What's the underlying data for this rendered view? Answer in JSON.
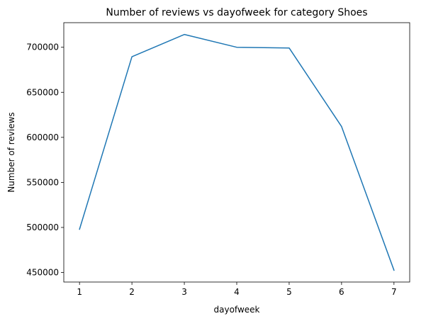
{
  "chart_data": {
    "type": "line",
    "title": "Number of reviews vs dayofweek for category Shoes",
    "xlabel": "dayofweek",
    "ylabel": "Number of reviews",
    "x": [
      1,
      2,
      3,
      4,
      5,
      6,
      7
    ],
    "series": [
      {
        "values": [
          498000,
          689500,
          714200,
          700000,
          699200,
          612000,
          452500
        ],
        "color": "#1f77b4"
      }
    ],
    "xticks": [
      1,
      2,
      3,
      4,
      5,
      6,
      7
    ],
    "xtick_labels": [
      "1",
      "2",
      "3",
      "4",
      "5",
      "6",
      "7"
    ],
    "yticks": [
      450000,
      500000,
      550000,
      600000,
      650000,
      700000
    ],
    "ytick_labels": [
      "450000",
      "500000",
      "550000",
      "600000",
      "650000",
      "700000"
    ],
    "xlim": [
      0.7,
      7.3
    ],
    "ylim": [
      439412,
      727288
    ],
    "grid": false,
    "legend": "none"
  }
}
